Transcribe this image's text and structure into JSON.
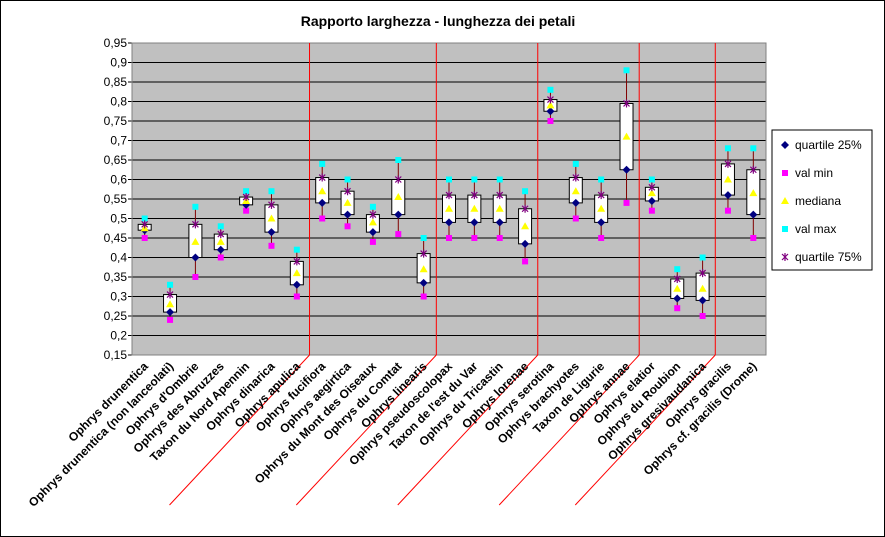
{
  "chart_data": {
    "type": "box",
    "title": "Rapporto larghezza - lunghezza dei petali",
    "xlabel": "",
    "ylabel": "",
    "ylim": [
      0.15,
      0.95
    ],
    "yticks": [
      "0,15",
      "0,2",
      "0,25",
      "0,3",
      "0,35",
      "0,4",
      "0,45",
      "0,5",
      "0,55",
      "0,6",
      "0,65",
      "0,7",
      "0,75",
      "0,8",
      "0,85",
      "0,9",
      "0,95"
    ],
    "grid": true,
    "legend_position": "right",
    "categories": [
      "Ophrys drunentica",
      "Ophrys drunentica (non lanceolati)",
      "Ophrys d'Ombrie",
      "Ophrys des Abruzzes",
      "Taxon du Nord Apennin",
      "Ophrys dinarica",
      "Ophrys apulica",
      "Ophrys fucifiora",
      "Ophrys aegirtica",
      "Ophrys du Mont des Oiseaux",
      "Ophrys du Comtat",
      "Ophrys linearis",
      "Ophrys pseudoscolopax",
      "Taxon de l'est du Var",
      "Ophrys du Tricastin",
      "Ophrys lorenae",
      "Ophrys serotina",
      "Ophrys brachyotes",
      "Taxon de Ligurie",
      "Ophrys annae",
      "Ophrys elatior",
      "Ophrys du Roubion",
      "Ophrys gresivaudanica",
      "Ophrys gracilis",
      "Ophrys cf. gracilis (Drome)"
    ],
    "series": [
      {
        "name": "quartile 25%",
        "values": [
          0.47,
          0.26,
          0.4,
          0.42,
          0.535,
          0.465,
          0.33,
          0.54,
          0.51,
          0.465,
          0.51,
          0.335,
          0.49,
          0.49,
          0.49,
          0.435,
          0.775,
          0.54,
          0.49,
          0.625,
          0.545,
          0.295,
          0.29,
          0.56,
          0.51
        ]
      },
      {
        "name": "val min",
        "values": [
          0.45,
          0.24,
          0.35,
          0.4,
          0.52,
          0.43,
          0.3,
          0.5,
          0.48,
          0.44,
          0.46,
          0.3,
          0.45,
          0.45,
          0.45,
          0.39,
          0.75,
          0.5,
          0.45,
          0.54,
          0.52,
          0.27,
          0.25,
          0.52,
          0.45
        ]
      },
      {
        "name": "mediana",
        "values": [
          0.475,
          0.28,
          0.44,
          0.44,
          0.545,
          0.5,
          0.36,
          0.57,
          0.54,
          0.49,
          0.555,
          0.37,
          0.525,
          0.525,
          0.525,
          0.48,
          0.79,
          0.57,
          0.525,
          0.71,
          0.565,
          0.32,
          0.32,
          0.6,
          0.565
        ]
      },
      {
        "name": "val max",
        "values": [
          0.5,
          0.33,
          0.53,
          0.48,
          0.57,
          0.57,
          0.42,
          0.64,
          0.6,
          0.53,
          0.65,
          0.45,
          0.6,
          0.6,
          0.6,
          0.57,
          0.83,
          0.64,
          0.6,
          0.88,
          0.6,
          0.37,
          0.4,
          0.68,
          0.68
        ]
      },
      {
        "name": "quartile 75%",
        "values": [
          0.485,
          0.305,
          0.485,
          0.46,
          0.555,
          0.535,
          0.39,
          0.605,
          0.57,
          0.51,
          0.6,
          0.41,
          0.56,
          0.56,
          0.56,
          0.525,
          0.805,
          0.605,
          0.56,
          0.795,
          0.58,
          0.345,
          0.36,
          0.64,
          0.625
        ]
      }
    ],
    "colors": {
      "quartile 25%": "#000080",
      "val min": "#ff00ff",
      "mediana": "#ffff00",
      "val max": "#00ffff",
      "quartile 75%": "#800080",
      "plot_bg": "#c0c0c0",
      "separator": "#ff0000",
      "box_fill": "#ffffff",
      "whisker": "#800000"
    },
    "group_boundaries_after_index": [
      6,
      11,
      15,
      19,
      22
    ]
  }
}
